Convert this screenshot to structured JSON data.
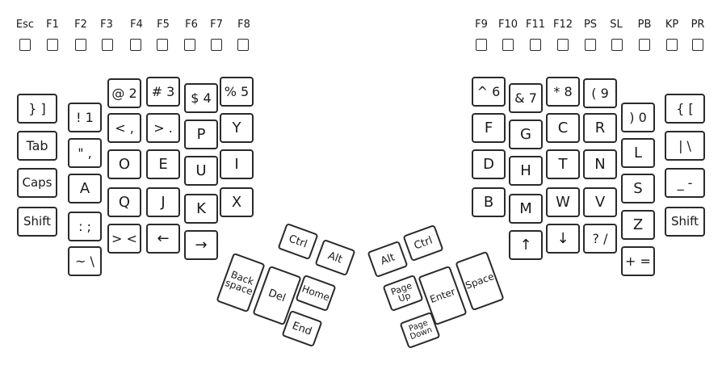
{
  "function_row_left": [
    "Esc",
    "F1",
    "F2",
    "F3",
    "F4",
    "F5",
    "F6",
    "F7",
    "F8"
  ],
  "function_row_right": [
    "F9",
    "F10",
    "F11",
    "F12",
    "PS",
    "SL",
    "PB",
    "KP",
    "PR"
  ],
  "left_hand": {
    "outer_col": [
      "} ]",
      "Tab",
      "Caps",
      "Shift"
    ],
    "col1": [
      "! 1",
      "\" ,",
      "A",
      ": ;",
      "~ \\"
    ],
    "col2": [
      "@ 2",
      "< ,",
      "O",
      "Q",
      "> <"
    ],
    "col3": [
      "# 3",
      "> .",
      "E",
      "J",
      "←"
    ],
    "col4": [
      "$ 4",
      "P",
      "U",
      "K",
      "→"
    ],
    "col5": [
      "% 5",
      "Y",
      "I",
      "X"
    ]
  },
  "right_hand": {
    "col1": [
      "^ 6",
      "F",
      "D",
      "B"
    ],
    "col2": [
      "& 7",
      "G",
      "H",
      "M",
      "↑"
    ],
    "col3": [
      "* 8",
      "C",
      "T",
      "W",
      "↓"
    ],
    "col4": [
      "( 9",
      "R",
      "N",
      "V",
      "? /"
    ],
    "col5": [
      ") 0",
      "L",
      "S",
      "Z",
      "+ ="
    ],
    "outer_col": [
      "{ [",
      "| \\",
      "_ -",
      "Shift"
    ]
  },
  "left_thumb": [
    "Ctrl",
    "Alt",
    "Back\nspace",
    "Del",
    "Home",
    "End"
  ],
  "right_thumb": [
    "Alt",
    "Ctrl",
    "Page\nUp",
    "Enter",
    "Space",
    "Page\nDown"
  ]
}
